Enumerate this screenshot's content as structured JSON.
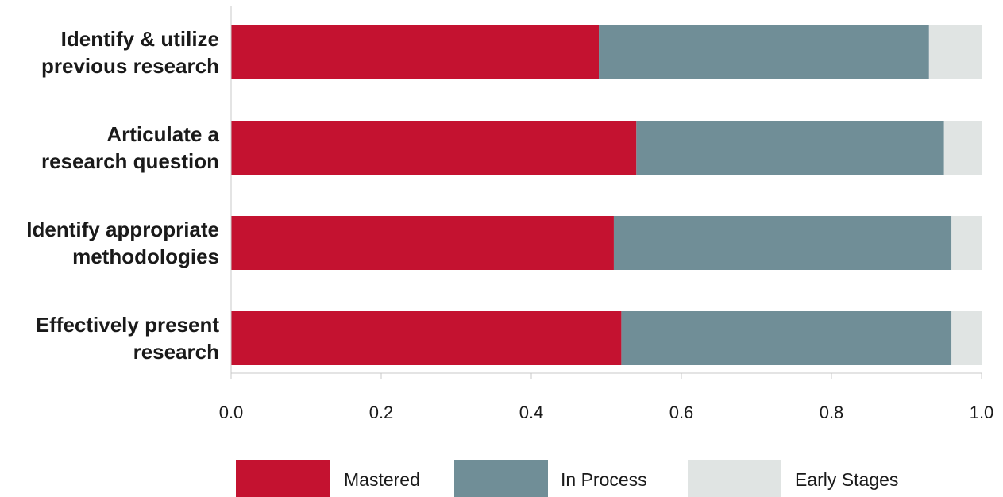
{
  "chart_data": {
    "type": "bar",
    "orientation": "horizontal",
    "stacked": true,
    "title": "",
    "xlabel": "",
    "ylabel": "",
    "xlim": [
      0,
      1
    ],
    "x_ticks": [
      "0.0",
      "0.2",
      "0.4",
      "0.6",
      "0.8",
      "1.0"
    ],
    "grid": false,
    "legend_position": "bottom",
    "categories": [
      [
        "Identify & utilize",
        "previous research"
      ],
      [
        "Articulate a",
        "research question"
      ],
      [
        "Identify appropriate",
        "methodologies"
      ],
      [
        "Effectively present",
        "research"
      ]
    ],
    "series": [
      {
        "name": "Mastered",
        "color": "#c41230",
        "values": [
          0.49,
          0.54,
          0.51,
          0.52
        ]
      },
      {
        "name": "In Process",
        "color": "#708e97",
        "values": [
          0.44,
          0.41,
          0.45,
          0.44
        ]
      },
      {
        "name": "Early Stages",
        "color": "#e0e4e3",
        "values": [
          0.07,
          0.05,
          0.04,
          0.04
        ]
      }
    ]
  }
}
